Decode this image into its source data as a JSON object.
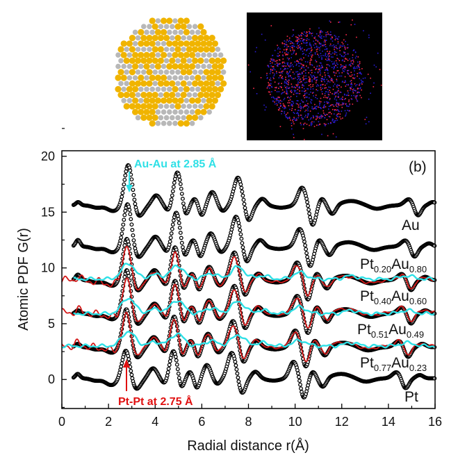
{
  "chart_data": {
    "type": "line",
    "xlabel": "Radial distance r(Å)",
    "ylabel": "Atomic PDF G(r)",
    "xlim": [
      0,
      16
    ],
    "ylim": [
      -2.6,
      20.5
    ],
    "xticks": [
      "0",
      "2",
      "4",
      "6",
      "8",
      "10",
      "12",
      "14",
      "16"
    ],
    "yticks": [
      "0",
      "5",
      "10",
      "15",
      "20"
    ],
    "panel_label": "(b)",
    "grid": false,
    "annotations": {
      "au": {
        "text": "Au-Au at 2.85 Å",
        "r": 2.85,
        "color": "#2fe0e6"
      },
      "pt": {
        "text": "Pt-Pt at 2.75 Å",
        "r": 2.75,
        "color": "#e01010"
      }
    },
    "colors": {
      "experiment": "#000000",
      "fit_red": "#d41818",
      "fit_cyan": "#2fe0e6"
    },
    "series": [
      {
        "sample": "Au",
        "label_main": "Au",
        "label_sub1": "",
        "label_main2": "",
        "label_sub2": "",
        "kind": "experiment",
        "offset": 15.6,
        "r_range": [
          0.5,
          16
        ],
        "peaks_r": [
          0.7,
          1.5,
          2.2,
          2.85,
          3.3,
          4.05,
          4.6,
          4.95,
          5.3,
          5.7,
          6.0,
          6.45,
          6.9,
          7.55,
          8.0,
          8.6,
          9.4,
          10.3,
          10.75,
          11.15,
          11.6,
          12.4,
          13.5,
          14.9,
          15.25,
          15.9
        ],
        "peaks_g": [
          0.3,
          -0.2,
          -0.5,
          3.7,
          -1.0,
          0.9,
          -0.6,
          3.0,
          -1.0,
          0.6,
          -0.9,
          1.2,
          -0.5,
          2.5,
          -1.4,
          0.6,
          -0.2,
          1.6,
          -1.8,
          0.6,
          -0.8,
          0.4,
          -0.3,
          0.6,
          -1.0,
          0.3
        ]
      },
      {
        "sample": "Pt0.20Au0.80",
        "label_main": "Pt",
        "label_sub1": "0.20",
        "label_main2": "Au",
        "label_sub2": "0.80",
        "kind": "experiment",
        "offset": 11.9,
        "r_range": [
          0.5,
          16
        ],
        "peaks_r": [
          0.69,
          1.49,
          2.18,
          2.82,
          3.27,
          4.01,
          4.55,
          4.9,
          5.25,
          5.64,
          5.94,
          6.39,
          6.83,
          7.47,
          7.92,
          8.51,
          9.31,
          10.2,
          10.64,
          11.04,
          11.48,
          12.28,
          13.37,
          14.75,
          15.1,
          15.74
        ],
        "peaks_g": [
          0.6,
          -0.2,
          -0.5,
          3.9,
          -1.0,
          0.9,
          -0.6,
          3.1,
          -1.0,
          0.6,
          -0.9,
          1.2,
          -0.5,
          2.7,
          -1.4,
          0.6,
          -0.2,
          1.6,
          -1.8,
          0.6,
          -0.8,
          0.4,
          -0.3,
          0.6,
          -1.0,
          0.3
        ]
      },
      {
        "sample": "Pt0.40Au0.60",
        "label_main": "Pt",
        "label_sub1": "0.40",
        "label_main2": "Au",
        "label_sub2": "0.60",
        "kind": "experiment",
        "offset": 8.9,
        "r_range": [
          0.5,
          16
        ],
        "peaks_r": [
          0.69,
          1.47,
          2.16,
          2.79,
          3.23,
          3.97,
          4.51,
          4.85,
          5.19,
          5.59,
          5.88,
          6.32,
          6.76,
          7.4,
          7.84,
          8.43,
          9.21,
          10.09,
          10.54,
          10.93,
          11.37,
          12.15,
          13.23,
          14.6,
          14.95,
          15.58
        ],
        "peaks_g": [
          0.5,
          -0.2,
          -0.5,
          3.8,
          -1.0,
          0.9,
          -0.6,
          3.0,
          -1.0,
          0.6,
          -0.9,
          1.2,
          -0.5,
          2.5,
          -1.4,
          0.6,
          -0.2,
          1.6,
          -1.8,
          0.6,
          -0.8,
          0.4,
          -0.3,
          0.6,
          -1.0,
          0.3
        ]
      },
      {
        "sample": "Pt0.51Au0.49",
        "label_main": "Pt",
        "label_sub1": "0.51",
        "label_main2": "Au",
        "label_sub2": "0.49",
        "kind": "experiment",
        "offset": 5.9,
        "r_range": [
          0.5,
          16
        ],
        "peaks_r": [
          0.69,
          1.47,
          2.16,
          2.79,
          3.23,
          3.97,
          4.51,
          4.85,
          5.19,
          5.59,
          5.88,
          6.32,
          6.76,
          7.4,
          7.84,
          8.43,
          9.21,
          10.09,
          10.54,
          10.93,
          11.37,
          12.15,
          13.23,
          14.6,
          14.95,
          15.58
        ],
        "peaks_g": [
          0.3,
          -0.2,
          -0.5,
          4.0,
          -1.0,
          0.9,
          -0.6,
          3.0,
          -1.0,
          0.6,
          -0.9,
          1.2,
          -0.5,
          2.5,
          -1.4,
          0.6,
          -0.2,
          1.6,
          -1.8,
          0.6,
          -0.8,
          0.4,
          -0.3,
          0.6,
          -1.0,
          0.3
        ]
      },
      {
        "sample": "Pt0.77Au0.23",
        "label_main": "Pt",
        "label_sub1": "0.77",
        "label_main2": "Au",
        "label_sub2": "0.23",
        "kind": "experiment",
        "offset": 2.9,
        "r_range": [
          0.5,
          16
        ],
        "peaks_r": [
          0.68,
          1.46,
          2.14,
          2.77,
          3.21,
          3.94,
          4.47,
          4.81,
          5.15,
          5.54,
          5.83,
          6.27,
          6.71,
          7.34,
          7.78,
          8.36,
          9.14,
          10.01,
          10.45,
          10.84,
          11.28,
          12.05,
          13.12,
          14.48,
          14.82,
          15.45
        ],
        "peaks_g": [
          0.3,
          -0.2,
          -0.5,
          3.5,
          -1.0,
          0.9,
          -0.6,
          2.8,
          -1.0,
          0.6,
          -0.9,
          1.2,
          -0.5,
          2.35,
          -1.4,
          0.6,
          -0.2,
          1.5,
          -1.8,
          0.6,
          -0.8,
          0.4,
          -0.3,
          0.6,
          -1.0,
          0.3
        ]
      },
      {
        "sample": "Pt",
        "label_main": "Pt",
        "label_sub1": "",
        "label_main2": "",
        "label_sub2": "",
        "kind": "experiment",
        "offset": 0.1,
        "r_range": [
          0.5,
          16
        ],
        "peaks_r": [
          0.68,
          1.45,
          2.12,
          2.75,
          3.18,
          3.91,
          4.44,
          4.78,
          5.11,
          5.5,
          5.79,
          6.22,
          6.66,
          7.29,
          7.72,
          8.3,
          9.07,
          9.94,
          10.37,
          10.76,
          11.19,
          11.97,
          13.03,
          14.38,
          14.72,
          15.34
        ],
        "peaks_g": [
          0.4,
          -0.2,
          -0.6,
          2.6,
          -1.0,
          0.9,
          -0.6,
          2.5,
          -1.0,
          0.6,
          -0.9,
          1.2,
          -0.5,
          2.3,
          -1.4,
          0.6,
          -0.2,
          1.5,
          -1.8,
          0.6,
          -0.8,
          0.4,
          -0.3,
          0.6,
          -1.0,
          0.3
        ]
      },
      {
        "sample": "Pt0.40Au0.60",
        "kind": "fit_red",
        "offset": 8.9,
        "r_range": [
          0,
          16
        ],
        "peaks_r": [
          0.69,
          1.47,
          2.16,
          2.79,
          3.23,
          3.97,
          4.51,
          4.85,
          5.19,
          5.59,
          5.88,
          6.32,
          6.76,
          7.4,
          7.84,
          8.43,
          9.21,
          10.09,
          10.54,
          10.93,
          11.37,
          12.15,
          13.23,
          14.6,
          14.95,
          15.58
        ],
        "peaks_g": [
          0.26,
          -0.17,
          -0.43,
          3.15,
          -0.85,
          0.77,
          -0.51,
          2.55,
          -0.85,
          0.51,
          -0.77,
          1.02,
          -0.43,
          2.13,
          -1.19,
          0.51,
          -0.17,
          1.36,
          -1.53,
          0.51,
          -0.68,
          0.34,
          -0.26,
          0.51,
          -0.85,
          0.26
        ]
      },
      {
        "sample": "Pt0.51Au0.49",
        "kind": "fit_red",
        "offset": 6.0,
        "r_range": [
          0,
          16
        ],
        "peaks_r": [
          0.69,
          1.47,
          2.16,
          2.79,
          3.23,
          3.97,
          4.51,
          4.85,
          5.19,
          5.59,
          5.88,
          6.32,
          6.76,
          7.4,
          7.84,
          8.43,
          9.21,
          10.09,
          10.54,
          10.93,
          11.37,
          12.15,
          13.23,
          14.6,
          14.95,
          15.58
        ],
        "peaks_g": [
          0.26,
          -0.17,
          -0.43,
          3.15,
          -0.85,
          0.77,
          -0.51,
          2.55,
          -0.85,
          0.51,
          -0.77,
          1.02,
          -0.43,
          2.13,
          -1.19,
          0.51,
          -0.17,
          1.36,
          -1.53,
          0.51,
          -0.68,
          0.34,
          -0.26,
          0.51,
          -0.85,
          0.26
        ]
      },
      {
        "sample": "Pt0.77Au0.23",
        "kind": "fit_red",
        "offset": 3.0,
        "r_range": [
          0,
          16
        ],
        "peaks_r": [
          0.68,
          1.46,
          2.14,
          2.77,
          3.21,
          3.94,
          4.47,
          4.81,
          5.15,
          5.54,
          5.83,
          6.27,
          6.71,
          7.34,
          7.78,
          8.36,
          9.14,
          10.01,
          10.45,
          10.84,
          11.28,
          12.05,
          13.12,
          14.48,
          14.82,
          15.45
        ],
        "peaks_g": [
          0.26,
          -0.17,
          -0.43,
          3.0,
          -0.85,
          0.77,
          -0.51,
          2.4,
          -0.85,
          0.51,
          -0.77,
          1.02,
          -0.43,
          1.9,
          -1.19,
          0.51,
          -0.17,
          1.3,
          -1.53,
          0.51,
          -0.68,
          0.34,
          -0.26,
          0.51,
          -0.85,
          0.26
        ]
      },
      {
        "sample": "Pt0.40Au0.60",
        "kind": "fit_cyan",
        "offset": 9.0,
        "r_range": [
          0.5,
          16
        ],
        "peaks_r": [
          2.85,
          4.0,
          4.95,
          6.4,
          7.55,
          8.6,
          10.2,
          12.4,
          14.8
        ],
        "peaks_g": [
          1.4,
          0.4,
          1.2,
          0.5,
          1.1,
          0.3,
          0.6,
          0.3,
          0.3
        ]
      },
      {
        "sample": "Pt0.51Au0.49",
        "kind": "fit_cyan",
        "offset": 5.9,
        "r_range": [
          0.5,
          16
        ],
        "peaks_r": [
          2.85,
          4.0,
          4.95,
          6.4,
          7.55,
          8.6,
          10.2,
          12.4,
          14.8
        ],
        "peaks_g": [
          1.4,
          0.4,
          1.2,
          0.5,
          1.1,
          0.3,
          0.6,
          0.3,
          0.3
        ]
      },
      {
        "sample": "Pt0.77Au0.23",
        "kind": "fit_cyan",
        "offset": 3.0,
        "r_range": [
          0,
          16
        ],
        "peaks_r": [
          2.85,
          4.0,
          4.95,
          6.4,
          7.55,
          8.6,
          10.2,
          12.4,
          14.8
        ],
        "peaks_g": [
          1.3,
          0.35,
          1.1,
          0.45,
          1.0,
          0.3,
          0.5,
          0.3,
          0.3
        ]
      }
    ]
  },
  "images": {
    "model": {
      "colors": {
        "au": "#f0b400",
        "pt": "#b8b8b8"
      }
    },
    "map": {
      "colors": {
        "background": "#000000",
        "au": "#2a1cd8",
        "pt": "#ff2a4a"
      }
    }
  }
}
